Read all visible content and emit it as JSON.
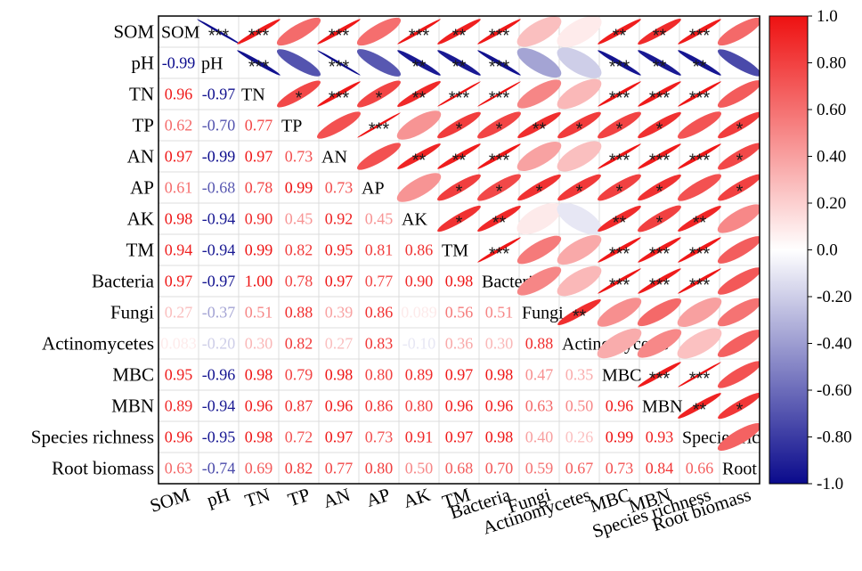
{
  "chart_data": {
    "type": "heatmap",
    "subtype": "correlation-matrix",
    "variables": [
      "SOM",
      "pH",
      "TN",
      "TP",
      "AN",
      "AP",
      "AK",
      "TM",
      "Bacteria",
      "Fungi",
      "Actinomycetes",
      "MBC",
      "MBN",
      "Species richness",
      "Root biomass"
    ],
    "lower_triangle": "correlation coefficients as text",
    "upper_triangle": "ellipses with significance stars",
    "correlations": [
      [
        null,
        -0.99,
        0.96,
        0.62,
        0.97,
        0.61,
        0.98,
        0.94,
        0.97,
        0.27,
        0.083,
        0.95,
        0.89,
        0.96,
        0.63
      ],
      [
        -0.99,
        null,
        -0.97,
        -0.7,
        -0.99,
        -0.68,
        -0.94,
        -0.94,
        -0.97,
        -0.37,
        -0.2,
        -0.96,
        -0.94,
        -0.95,
        -0.74
      ],
      [
        0.96,
        -0.97,
        null,
        0.77,
        0.97,
        0.78,
        0.9,
        0.99,
        1.0,
        0.51,
        0.3,
        0.98,
        0.96,
        0.98,
        0.69
      ],
      [
        0.62,
        -0.7,
        0.77,
        null,
        0.73,
        0.99,
        0.45,
        0.82,
        0.78,
        0.88,
        0.82,
        0.79,
        0.87,
        0.72,
        0.82
      ],
      [
        0.97,
        -0.99,
        0.97,
        0.73,
        null,
        0.73,
        0.92,
        0.95,
        0.97,
        0.39,
        0.27,
        0.98,
        0.96,
        0.97,
        0.77
      ],
      [
        0.61,
        -0.68,
        0.78,
        0.99,
        0.73,
        null,
        0.45,
        0.81,
        0.77,
        0.86,
        0.83,
        0.8,
        0.86,
        0.73,
        0.8
      ],
      [
        0.98,
        -0.94,
        0.9,
        0.45,
        0.92,
        0.45,
        null,
        0.86,
        0.9,
        0.089,
        -0.1,
        0.89,
        0.8,
        0.91,
        0.5
      ],
      [
        0.94,
        -0.94,
        0.99,
        0.82,
        0.95,
        0.81,
        0.86,
        null,
        0.98,
        0.56,
        0.36,
        0.97,
        0.96,
        0.97,
        0.68
      ],
      [
        0.97,
        -0.97,
        1.0,
        0.78,
        0.97,
        0.77,
        0.9,
        0.98,
        null,
        0.51,
        0.3,
        0.98,
        0.96,
        0.98,
        0.7
      ],
      [
        0.27,
        -0.37,
        0.51,
        0.88,
        0.39,
        0.86,
        0.089,
        0.56,
        0.51,
        null,
        0.88,
        0.47,
        0.63,
        0.4,
        0.59
      ],
      [
        0.083,
        -0.2,
        0.3,
        0.82,
        0.27,
        0.83,
        -0.1,
        0.36,
        0.3,
        0.88,
        null,
        0.35,
        0.5,
        0.26,
        0.67
      ],
      [
        0.95,
        -0.96,
        0.98,
        0.79,
        0.98,
        0.8,
        0.89,
        0.97,
        0.98,
        0.47,
        0.35,
        null,
        0.96,
        0.99,
        0.73
      ],
      [
        0.89,
        -0.94,
        0.96,
        0.87,
        0.96,
        0.86,
        0.8,
        0.96,
        0.96,
        0.63,
        0.5,
        0.96,
        null,
        0.93,
        0.84
      ],
      [
        0.96,
        -0.95,
        0.98,
        0.72,
        0.97,
        0.73,
        0.91,
        0.97,
        0.98,
        0.4,
        0.26,
        0.99,
        0.93,
        null,
        0.66
      ],
      [
        0.63,
        -0.74,
        0.69,
        0.82,
        0.77,
        0.8,
        0.5,
        0.68,
        0.7,
        0.59,
        0.67,
        0.73,
        0.84,
        0.66,
        null
      ]
    ],
    "lower_labels": [
      [
        null,
        null,
        null,
        null,
        null,
        null,
        null,
        null,
        null,
        null,
        null,
        null,
        null,
        null,
        null
      ],
      [
        "-0.99",
        null,
        null,
        null,
        null,
        null,
        null,
        null,
        null,
        null,
        null,
        null,
        null,
        null,
        null
      ],
      [
        "0.96",
        "-0.97",
        null,
        null,
        null,
        null,
        null,
        null,
        null,
        null,
        null,
        null,
        null,
        null,
        null
      ],
      [
        "0.62",
        "-0.70",
        "0.77",
        null,
        null,
        null,
        null,
        null,
        null,
        null,
        null,
        null,
        null,
        null,
        null
      ],
      [
        "0.97",
        "-0.99",
        "0.97",
        "0.73",
        null,
        null,
        null,
        null,
        null,
        null,
        null,
        null,
        null,
        null,
        null
      ],
      [
        "0.61",
        "-0.68",
        "0.78",
        "0.99",
        "0.73",
        null,
        null,
        null,
        null,
        null,
        null,
        null,
        null,
        null,
        null
      ],
      [
        "0.98",
        "-0.94",
        "0.90",
        "0.45",
        "0.92",
        "0.45",
        null,
        null,
        null,
        null,
        null,
        null,
        null,
        null,
        null
      ],
      [
        "0.94",
        "-0.94",
        "0.99",
        "0.82",
        "0.95",
        "0.81",
        "0.86",
        null,
        null,
        null,
        null,
        null,
        null,
        null,
        null
      ],
      [
        "0.97",
        "-0.97",
        "1.00",
        "0.78",
        "0.97",
        "0.77",
        "0.90",
        "0.98",
        null,
        null,
        null,
        null,
        null,
        null,
        null
      ],
      [
        "0.27",
        "-0.37",
        "0.51",
        "0.88",
        "0.39",
        "0.86",
        "0.089",
        "0.56",
        "0.51",
        null,
        null,
        null,
        null,
        null,
        null
      ],
      [
        "0.083",
        "-0.20",
        "0.30",
        "0.82",
        "0.27",
        "0.83",
        "-0.10",
        "0.36",
        "0.30",
        "0.88",
        null,
        null,
        null,
        null,
        null
      ],
      [
        "0.95",
        "-0.96",
        "0.98",
        "0.79",
        "0.98",
        "0.80",
        "0.89",
        "0.97",
        "0.98",
        "0.47",
        "0.35",
        null,
        null,
        null,
        null
      ],
      [
        "0.89",
        "-0.94",
        "0.96",
        "0.87",
        "0.96",
        "0.86",
        "0.80",
        "0.96",
        "0.96",
        "0.63",
        "0.50",
        "0.96",
        null,
        null,
        null
      ],
      [
        "0.96",
        "-0.95",
        "0.98",
        "0.72",
        "0.97",
        "0.73",
        "0.91",
        "0.97",
        "0.98",
        "0.40",
        "0.26",
        "0.99",
        "0.93",
        null,
        null
      ],
      [
        "0.63",
        "-0.74",
        "0.69",
        "0.82",
        "0.77",
        "0.80",
        "0.50",
        "0.68",
        "0.70",
        "0.59",
        "0.67",
        "0.73",
        "0.84",
        "0.66",
        null
      ]
    ],
    "significance_upper": [
      [
        null,
        "***",
        "***",
        "",
        "***",
        "",
        "***",
        "**",
        "***",
        "",
        "",
        "**",
        "**",
        "***",
        ""
      ],
      [
        null,
        null,
        "***",
        "",
        "***",
        "",
        "**",
        "**",
        "***",
        "",
        "",
        "***",
        "**",
        "**",
        ""
      ],
      [
        null,
        null,
        null,
        "*",
        "***",
        "*",
        "**",
        "***",
        "***",
        "",
        "",
        "***",
        "***",
        "***",
        ""
      ],
      [
        null,
        null,
        null,
        null,
        "",
        "***",
        "",
        "*",
        "*",
        "**",
        "*",
        "*",
        "*",
        "",
        "*"
      ],
      [
        null,
        null,
        null,
        null,
        null,
        "",
        "**",
        "**",
        "***",
        "",
        "",
        "***",
        "***",
        "***",
        "*"
      ],
      [
        null,
        null,
        null,
        null,
        null,
        null,
        "",
        "*",
        "*",
        "*",
        "*",
        "*",
        "*",
        "",
        "*"
      ],
      [
        null,
        null,
        null,
        null,
        null,
        null,
        null,
        "*",
        "**",
        "",
        "",
        "**",
        "*",
        "**",
        ""
      ],
      [
        null,
        null,
        null,
        null,
        null,
        null,
        null,
        null,
        "***",
        "",
        "",
        "***",
        "***",
        "***",
        ""
      ],
      [
        null,
        null,
        null,
        null,
        null,
        null,
        null,
        null,
        null,
        "",
        "",
        "***",
        "***",
        "***",
        ""
      ],
      [
        null,
        null,
        null,
        null,
        null,
        null,
        null,
        null,
        null,
        null,
        "**",
        "",
        "",
        "",
        ""
      ],
      [
        null,
        null,
        null,
        null,
        null,
        null,
        null,
        null,
        null,
        null,
        null,
        "",
        "",
        "",
        ""
      ],
      [
        null,
        null,
        null,
        null,
        null,
        null,
        null,
        null,
        null,
        null,
        null,
        null,
        "***",
        "***",
        ""
      ],
      [
        null,
        null,
        null,
        null,
        null,
        null,
        null,
        null,
        null,
        null,
        null,
        null,
        null,
        "**",
        "*"
      ],
      [
        null,
        null,
        null,
        null,
        null,
        null,
        null,
        null,
        null,
        null,
        null,
        null,
        null,
        null,
        ""
      ],
      [
        null,
        null,
        null,
        null,
        null,
        null,
        null,
        null,
        null,
        null,
        null,
        null,
        null,
        null,
        null
      ]
    ],
    "colorbar": {
      "range": [
        -1.0,
        1.0
      ],
      "ticks": [
        "1.0",
        "0.80",
        "0.60",
        "0.40",
        "0.20",
        "0.0",
        "-0.20",
        "-0.40",
        "-0.60",
        "-0.80",
        "-1.0"
      ],
      "colors": {
        "negative": "#0a0a8c",
        "zero": "#ffffff",
        "positive": "#ee1111"
      }
    },
    "grid": true,
    "legend": "right"
  }
}
